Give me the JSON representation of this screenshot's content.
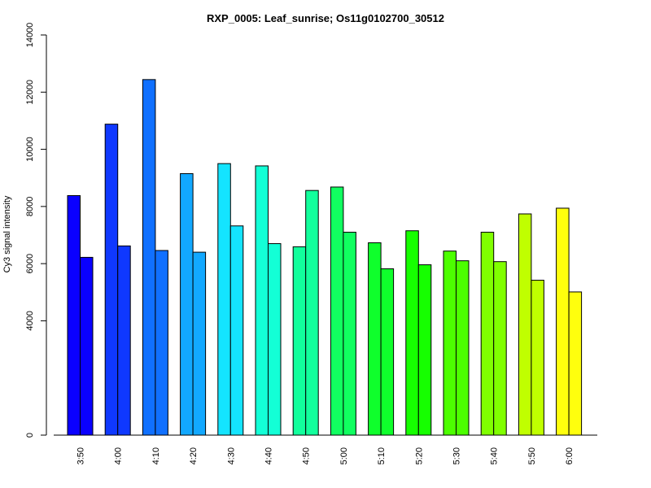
{
  "chart_data": {
    "type": "bar",
    "title": "RXP_0005: Leaf_sunrise; Os11g0102700_30512",
    "xlabel": "",
    "ylabel": "Cy3 signal intensity",
    "ylim": [
      0,
      14000
    ],
    "yticks": [
      0,
      4000,
      6000,
      8000,
      10000,
      12000,
      14000
    ],
    "grid": false,
    "legend": "none",
    "categories": [
      "3:50",
      "4:00",
      "4:10",
      "4:20",
      "4:30",
      "4:40",
      "4:50",
      "5:00",
      "5:10",
      "5:20",
      "5:30",
      "5:40",
      "5:50",
      "6:00"
    ],
    "colors": [
      "#0a00ff",
      "#0f38ff",
      "#1070ff",
      "#12a8ff",
      "#14e4ff",
      "#13ffd6",
      "#12ff9c",
      "#11ff60",
      "#0fff2c",
      "#16ff00",
      "#4cff00",
      "#80ff00",
      "#c0ff00",
      "#ffff0d"
    ],
    "series": [
      {
        "values": [
          8380,
          10880,
          12440,
          9150,
          9500,
          9420,
          6590,
          8680,
          6730,
          7150,
          6440,
          7100,
          7740,
          7940
        ]
      },
      {
        "values": [
          6220,
          6620,
          6460,
          6400,
          7320,
          6700,
          8560,
          7100,
          5820,
          5960,
          6100,
          6070,
          5420,
          5010
        ]
      }
    ]
  }
}
